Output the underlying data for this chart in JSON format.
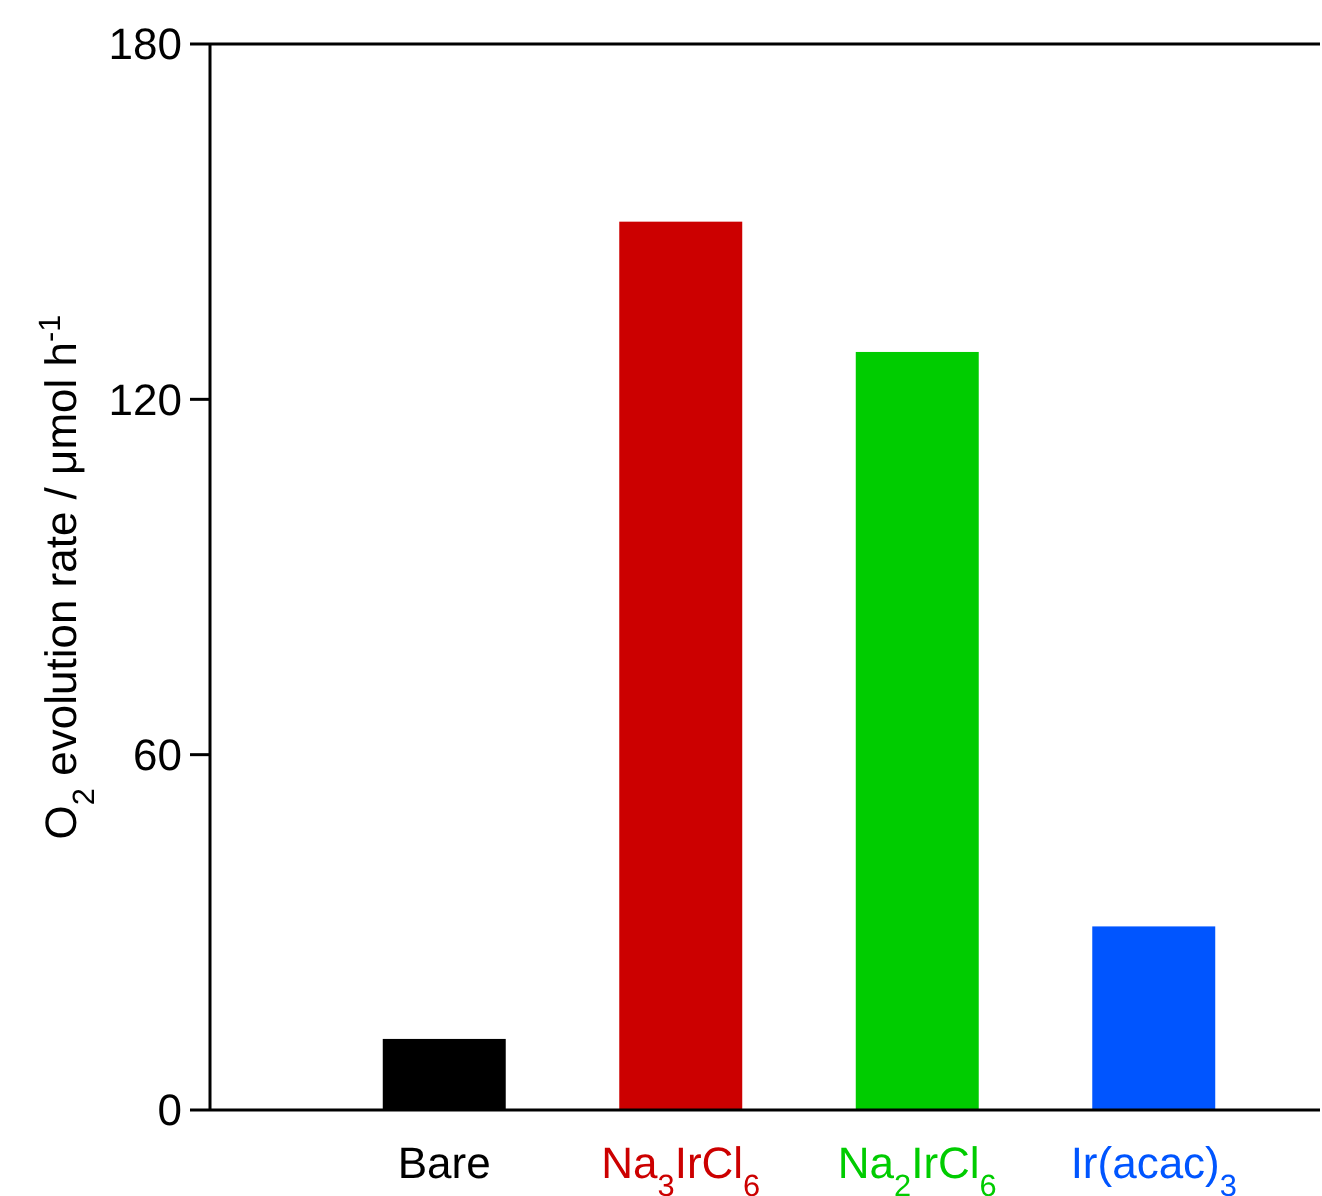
{
  "chart_data": {
    "type": "bar",
    "ylabel": "O$_{2}$ evolution rate / μmol h$^{-1}$",
    "categories": [
      "Bare",
      "Na$_{3}$IrCl$_{6}$",
      "Na$_{2}$IrCl$_{6}$",
      "Ir(acac)$_{3}$"
    ],
    "values": [
      12,
      150,
      128,
      31
    ],
    "colors": [
      "#000000",
      "#cc0000",
      "#00cc00",
      "#0055ff"
    ],
    "ylim": [
      0,
      180
    ],
    "yticks": [
      0,
      60,
      120,
      180
    ],
    "grid": false
  }
}
